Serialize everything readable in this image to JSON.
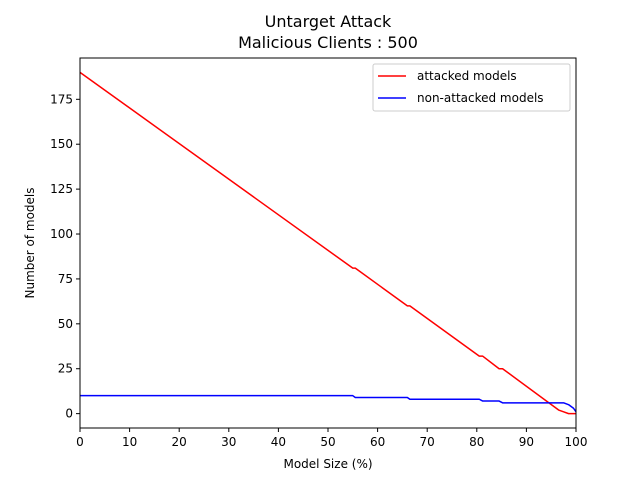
{
  "chart_data": {
    "type": "line",
    "title": "Untarget Attack",
    "subtitle": "Malicious Clients : 500",
    "xlabel": "Model Size (%)",
    "ylabel": "Number of models",
    "xlim": [
      0,
      100
    ],
    "ylim": [
      -8,
      198
    ],
    "xticks": [
      0,
      10,
      20,
      30,
      40,
      50,
      60,
      70,
      80,
      90,
      100
    ],
    "yticks": [
      0,
      25,
      50,
      75,
      100,
      125,
      150,
      175
    ],
    "grid": false,
    "legend_position": "top-right",
    "series": [
      {
        "name": "attacked models",
        "color": "#ff0000",
        "points": [
          [
            0,
            190
          ],
          [
            55,
            81
          ],
          [
            55.5,
            81
          ],
          [
            66,
            60
          ],
          [
            66.5,
            60
          ],
          [
            80.5,
            32
          ],
          [
            81.2,
            32
          ],
          [
            84.5,
            25
          ],
          [
            85.2,
            25
          ],
          [
            96.5,
            2
          ],
          [
            97.5,
            1
          ],
          [
            98.5,
            0
          ],
          [
            100,
            0
          ]
        ]
      },
      {
        "name": "non-attacked models",
        "color": "#0000ff",
        "points": [
          [
            0,
            10
          ],
          [
            55,
            10
          ],
          [
            55.5,
            9
          ],
          [
            66,
            9
          ],
          [
            66.5,
            8
          ],
          [
            80.5,
            8
          ],
          [
            81.2,
            7
          ],
          [
            84.5,
            7
          ],
          [
            85.2,
            6
          ],
          [
            96.5,
            6
          ],
          [
            97.5,
            6
          ],
          [
            98.5,
            5
          ],
          [
            99.5,
            3
          ],
          [
            100,
            1
          ]
        ]
      }
    ]
  }
}
